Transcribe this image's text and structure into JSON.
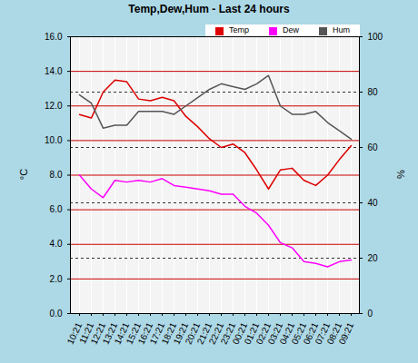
{
  "chart_data": {
    "type": "line",
    "title": "Temp,Dew,Hum - Last 24 hours",
    "x": [
      "10:21",
      "11:21",
      "12:21",
      "13:21",
      "14:21",
      "15:21",
      "16:21",
      "17:21",
      "18:21",
      "19:21",
      "20:21",
      "21:21",
      "22:21",
      "23:21",
      "00:21",
      "01:21",
      "02:21",
      "03:21",
      "04:21",
      "05:21",
      "06:21",
      "07:21",
      "08:21",
      "09:21"
    ],
    "series": [
      {
        "name": "Temp",
        "color": "#dd0000",
        "values": [
          11.5,
          11.3,
          12.8,
          13.5,
          13.4,
          12.4,
          12.3,
          12.5,
          12.3,
          11.4,
          10.8,
          10.1,
          9.6,
          9.8,
          9.3,
          8.3,
          7.2,
          8.3,
          8.4,
          7.7,
          7.4,
          8.0,
          8.9,
          9.7
        ]
      },
      {
        "name": "Dew",
        "color": "#ff00ff",
        "values": [
          8.0,
          7.2,
          6.7,
          7.7,
          7.6,
          7.7,
          7.6,
          7.8,
          7.4,
          7.3,
          7.2,
          7.1,
          6.9,
          6.9,
          6.2,
          5.8,
          5.1,
          4.1,
          3.8,
          3.0,
          2.9,
          2.7,
          3.0,
          3.1
        ]
      },
      {
        "name": "Hum",
        "color": "#555555",
        "axis": "y2",
        "values": [
          79,
          76,
          67,
          68,
          68,
          73,
          73,
          73,
          72,
          75,
          78,
          81,
          83,
          82,
          81,
          83,
          86,
          75,
          72,
          72,
          73,
          69,
          66,
          63
        ]
      }
    ],
    "y_label": "°C",
    "y2_label": "%",
    "ylim": [
      0,
      16
    ],
    "yticks": [
      {
        "value": 0,
        "label": "0.0"
      },
      {
        "value": 2,
        "label": "2.0"
      },
      {
        "value": 4,
        "label": "4.0"
      },
      {
        "value": 6,
        "label": "6.0"
      },
      {
        "value": 8,
        "label": "8.0"
      },
      {
        "value": 10,
        "label": "10.0"
      },
      {
        "value": 12,
        "label": "12.0"
      },
      {
        "value": 14,
        "label": "14.0"
      },
      {
        "value": 16,
        "label": "16.0"
      }
    ],
    "y2lim": [
      0,
      100
    ],
    "y2ticks": [
      0,
      20,
      40,
      60,
      80,
      100
    ],
    "grid": true,
    "legend": "top right"
  }
}
